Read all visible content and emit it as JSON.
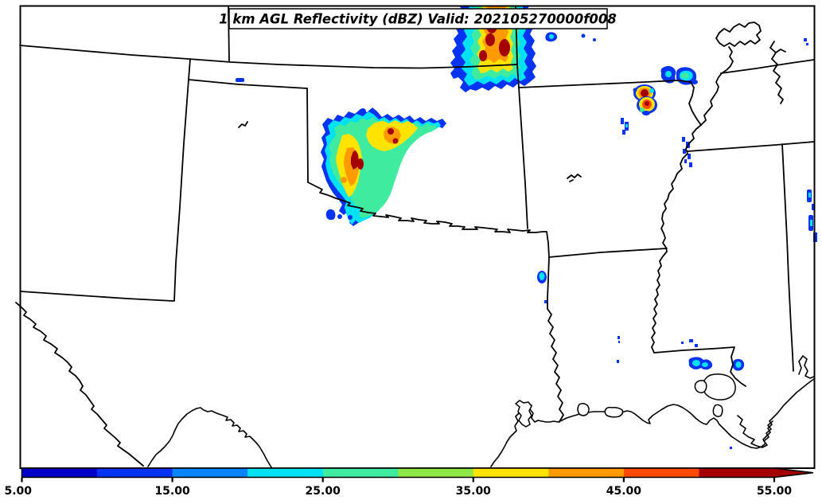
{
  "title": {
    "text": "1 km AGL Reflectivity (dBZ) Valid: 202105270000f008"
  },
  "colorbar": {
    "unit": "dBZ",
    "range_min": 5,
    "range_max": 55,
    "step": 5,
    "tick_labels": [
      "5.00",
      "15.00",
      "25.00",
      "35.00",
      "45.00",
      "55.00"
    ],
    "segments": [
      {
        "from": 5,
        "to": 10,
        "color": "#0000C6"
      },
      {
        "from": 10,
        "to": 15,
        "color": "#0633F2"
      },
      {
        "from": 15,
        "to": 20,
        "color": "#0A85FF"
      },
      {
        "from": 20,
        "to": 25,
        "color": "#00E1F2"
      },
      {
        "from": 25,
        "to": 30,
        "color": "#3FEB9F"
      },
      {
        "from": 30,
        "to": 35,
        "color": "#8EE845"
      },
      {
        "from": 35,
        "to": 40,
        "color": "#FFE402"
      },
      {
        "from": 40,
        "to": 45,
        "color": "#FF9A00"
      },
      {
        "from": 45,
        "to": 50,
        "color": "#FF4A00"
      },
      {
        "from": 50,
        "to": 55,
        "color": "#A50000"
      }
    ],
    "over_arrow_color": "#A50000"
  },
  "map": {
    "region": "South-central United States (TX, OK, KS, MO, AR, LA, MS, TN area)",
    "echoes": [
      {
        "location": "south-central Kansas, north of map center",
        "max_intensity": "50+ dBZ cores"
      },
      {
        "location": "northwest Oklahoma / eastern Texas panhandle",
        "max_intensity": "50+ dBZ cores"
      },
      {
        "location": "northeast Arkansas near Missouri bootheel",
        "max_intensity": "50+ dBZ cells"
      },
      {
        "location": "scattered light echoes in Louisiana and along Mississippi River",
        "max_intensity": "20-25 dBZ"
      }
    ]
  }
}
